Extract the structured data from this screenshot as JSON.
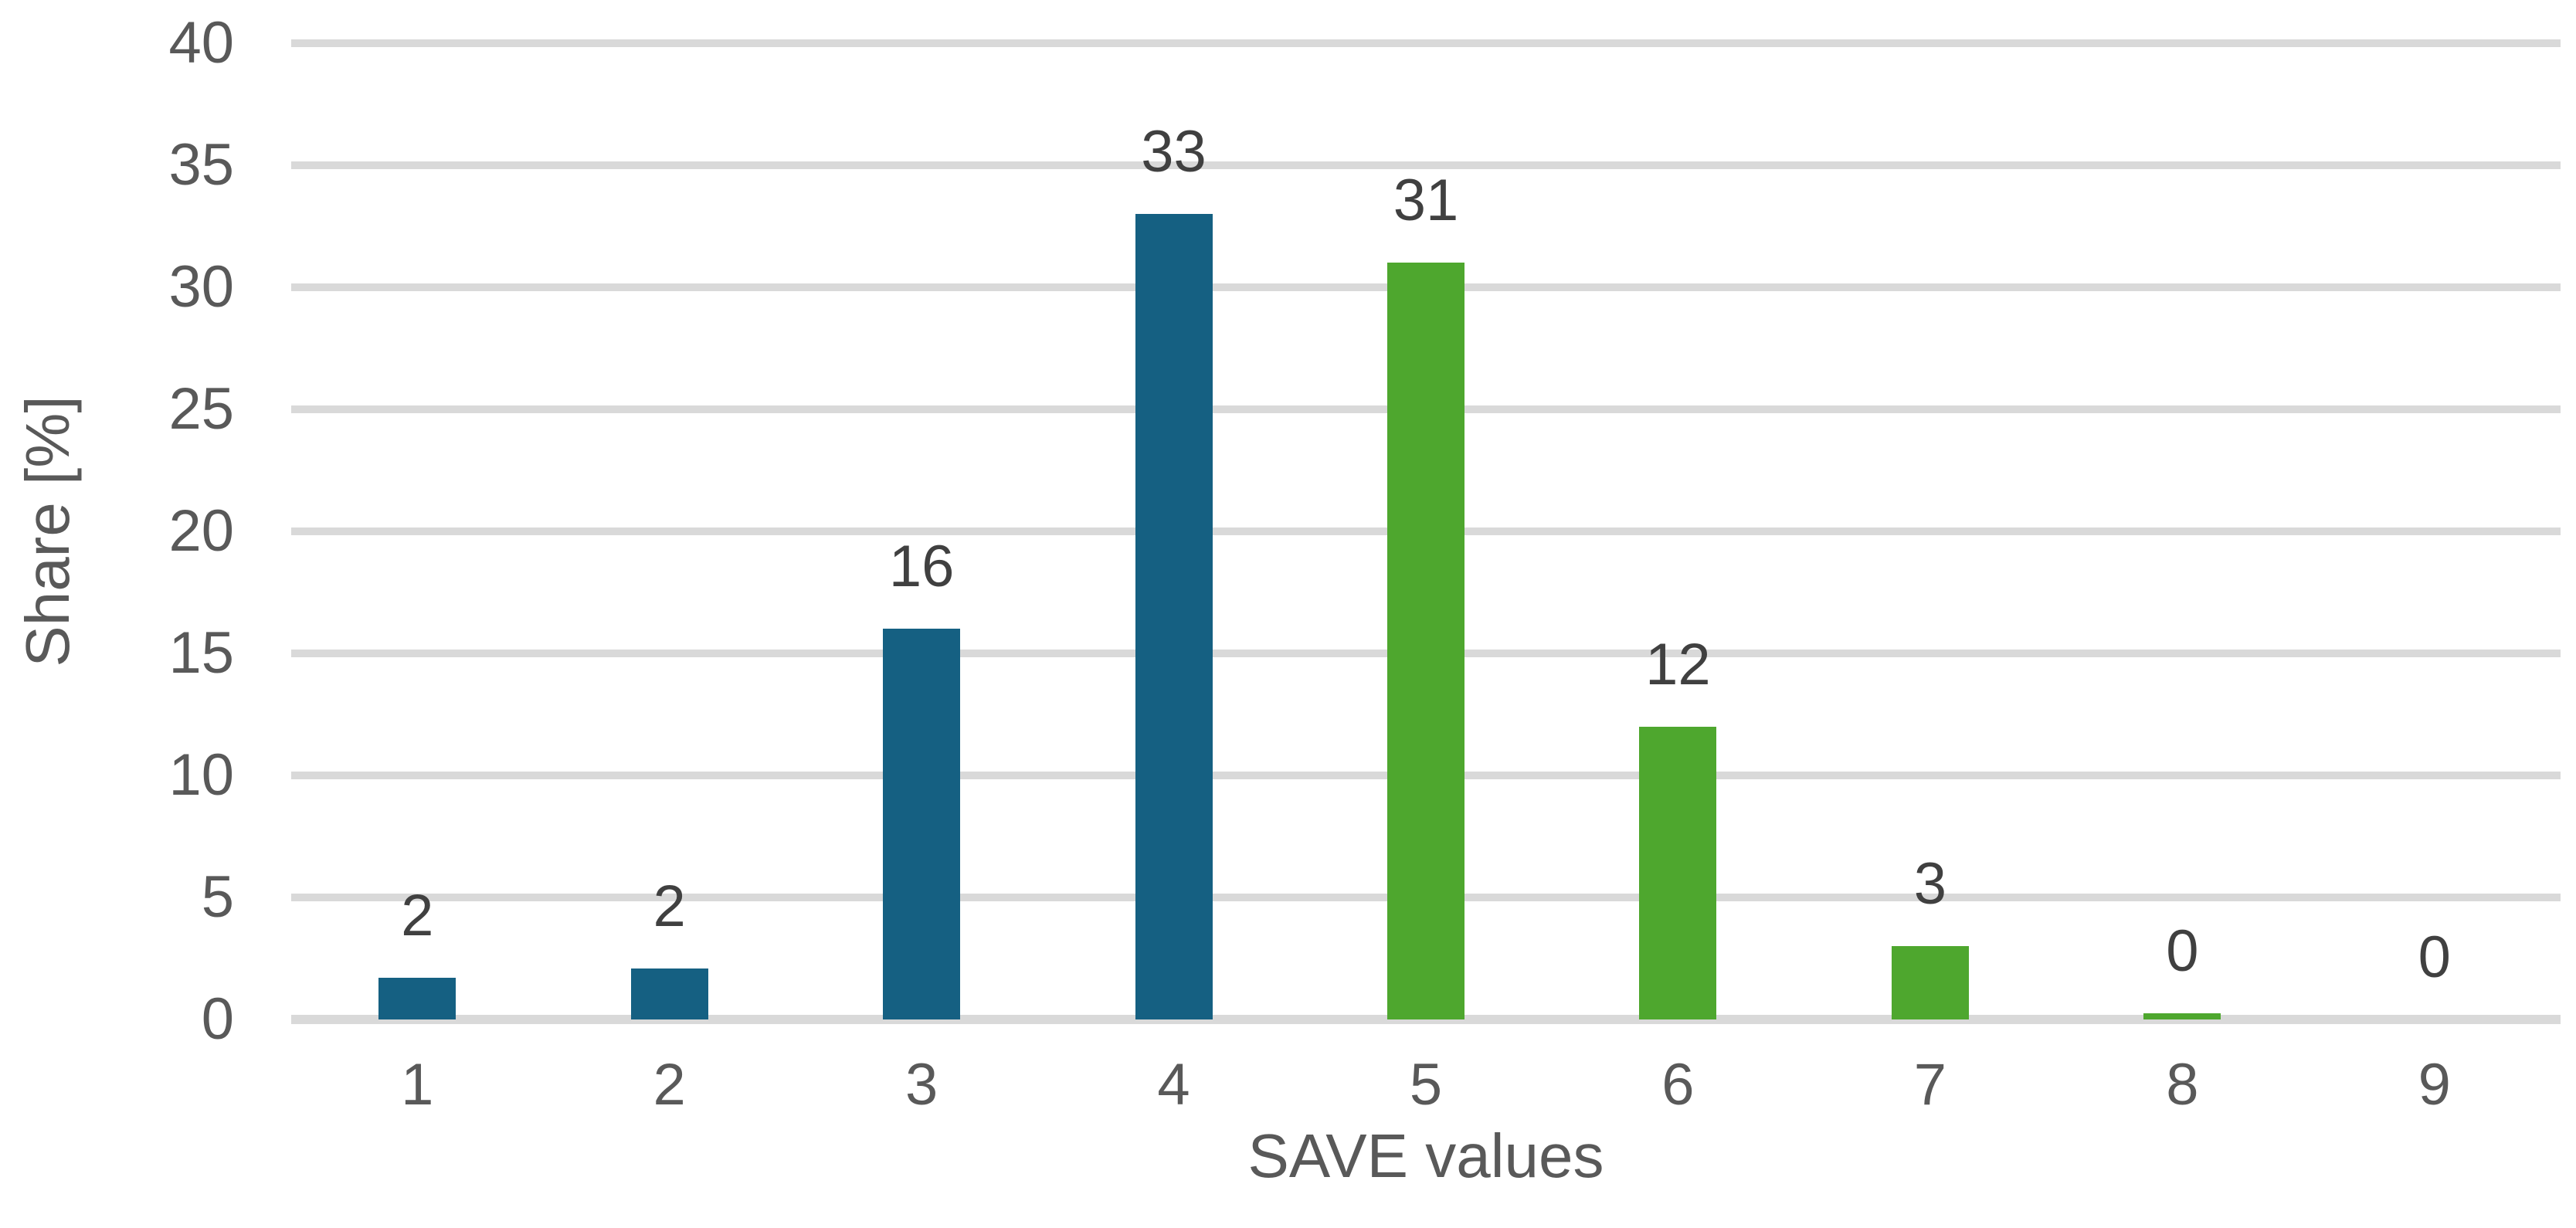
{
  "chart_data": {
    "type": "bar",
    "title": "",
    "xlabel": "SAVE values",
    "ylabel": "Share [%]",
    "categories": [
      "1",
      "2",
      "3",
      "4",
      "5",
      "6",
      "7",
      "8",
      "9"
    ],
    "values": [
      2,
      2,
      16,
      33,
      31,
      12,
      3,
      0,
      0
    ],
    "data_labels": [
      "2",
      "2",
      "16",
      "33",
      "31",
      "12",
      "3",
      "0",
      "0"
    ],
    "rendered_values": [
      1.7,
      2.1,
      16,
      33,
      31,
      12,
      3,
      0.25,
      0
    ],
    "bar_colors_by_category": [
      "series_blue",
      "series_blue",
      "series_blue",
      "series_blue",
      "series_green",
      "series_green",
      "series_green",
      "series_green",
      "series_green"
    ],
    "ylim": [
      0,
      40
    ],
    "yticks": [
      0,
      5,
      10,
      15,
      20,
      25,
      30,
      35,
      40
    ],
    "ytick_labels": [
      "0",
      "5",
      "10",
      "15",
      "20",
      "25",
      "30",
      "35",
      "40"
    ],
    "grid": "horizontal",
    "legend": "none",
    "colors": {
      "series_blue": "#156082",
      "series_green": "#4EA72E",
      "gridline": "#D9D9D9",
      "axis_line": "#D9D9D9",
      "tick_label_text": "#595959",
      "data_label_text": "#404040",
      "axis_title_text": "#595959",
      "background": "#FFFFFF"
    }
  }
}
